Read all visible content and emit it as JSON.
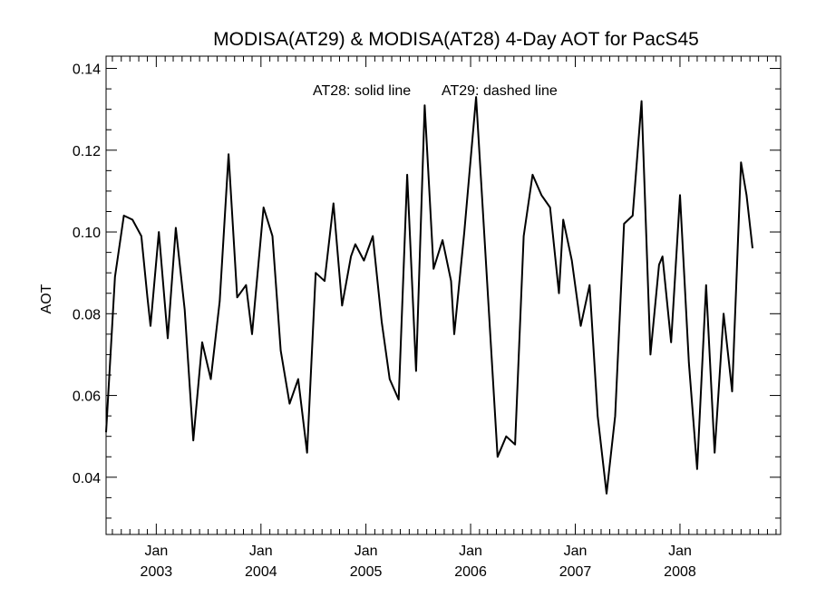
{
  "chart_data": {
    "type": "line",
    "title": "MODISA(AT29) & MODISA(AT28) 4-Day AOT for PacS45",
    "xlabel": "",
    "ylabel": "AOT",
    "annotations": [
      "AT28: solid line",
      "AT29: dashed line"
    ],
    "xlim": [
      "2002-07-10",
      "2008-12-17"
    ],
    "ylim": [
      0.026,
      0.143
    ],
    "yticks": [
      0.04,
      0.06,
      0.08,
      0.1,
      0.12,
      0.14
    ],
    "ytick_labels": [
      "0.04",
      "0.06",
      "0.08",
      "0.10",
      "0.12",
      "0.14"
    ],
    "xticks": [
      {
        "date": "2003-01-01",
        "line1": "Jan",
        "line2": "2003"
      },
      {
        "date": "2004-01-01",
        "line1": "Jan",
        "line2": "2004"
      },
      {
        "date": "2005-01-01",
        "line1": "Jan",
        "line2": "2005"
      },
      {
        "date": "2006-01-01",
        "line1": "Jan",
        "line2": "2006"
      },
      {
        "date": "2007-01-01",
        "line1": "Jan",
        "line2": "2007"
      },
      {
        "date": "2008-01-01",
        "line1": "Jan",
        "line2": "2008"
      }
    ],
    "minor_x_ticks": "monthly",
    "grid": false,
    "series": [
      {
        "name": "AT28",
        "style": "solid",
        "color": "#000000",
        "points": [
          [
            "2002-07-10",
            0.051
          ],
          [
            "2002-08-10",
            0.089
          ],
          [
            "2002-09-10",
            0.104
          ],
          [
            "2002-10-10",
            0.103
          ],
          [
            "2002-11-10",
            0.099
          ],
          [
            "2002-12-01",
            0.084
          ],
          [
            "2002-12-12",
            0.077
          ],
          [
            "2003-01-10",
            0.1
          ],
          [
            "2003-02-10",
            0.074
          ],
          [
            "2003-03-10",
            0.101
          ],
          [
            "2003-04-10",
            0.081
          ],
          [
            "2003-05-10",
            0.049
          ],
          [
            "2003-06-10",
            0.073
          ],
          [
            "2003-07-10",
            0.064
          ],
          [
            "2003-08-10",
            0.083
          ],
          [
            "2003-09-10",
            0.119
          ],
          [
            "2003-10-10",
            0.084
          ],
          [
            "2003-11-10",
            0.087
          ],
          [
            "2003-12-01",
            0.075
          ],
          [
            "2004-01-10",
            0.106
          ],
          [
            "2004-02-10",
            0.099
          ],
          [
            "2004-03-10",
            0.071
          ],
          [
            "2004-04-10",
            0.058
          ],
          [
            "2004-05-10",
            0.064
          ],
          [
            "2004-06-10",
            0.046
          ],
          [
            "2004-07-10",
            0.09
          ],
          [
            "2004-08-10",
            0.088
          ],
          [
            "2004-09-10",
            0.107
          ],
          [
            "2004-10-10",
            0.082
          ],
          [
            "2004-11-10",
            0.094
          ],
          [
            "2004-11-25",
            0.097
          ],
          [
            "2004-12-25",
            0.093
          ],
          [
            "2005-01-25",
            0.099
          ],
          [
            "2005-02-25",
            0.078
          ],
          [
            "2005-03-25",
            0.064
          ],
          [
            "2005-04-25",
            0.059
          ],
          [
            "2005-05-25",
            0.114
          ],
          [
            "2005-06-25",
            0.066
          ],
          [
            "2005-07-25",
            0.131
          ],
          [
            "2005-08-25",
            0.091
          ],
          [
            "2005-09-25",
            0.098
          ],
          [
            "2005-10-25",
            0.088
          ],
          [
            "2005-11-05",
            0.075
          ],
          [
            "2005-12-10",
            0.1
          ],
          [
            "2006-01-20",
            0.133
          ],
          [
            "2006-04-05",
            0.045
          ],
          [
            "2006-05-05",
            0.05
          ],
          [
            "2006-06-05",
            0.048
          ],
          [
            "2006-07-05",
            0.099
          ],
          [
            "2006-08-05",
            0.114
          ],
          [
            "2006-09-05",
            0.109
          ],
          [
            "2006-10-05",
            0.106
          ],
          [
            "2006-11-05",
            0.085
          ],
          [
            "2006-11-20",
            0.103
          ],
          [
            "2006-12-20",
            0.093
          ],
          [
            "2007-01-20",
            0.077
          ],
          [
            "2007-02-20",
            0.087
          ],
          [
            "2007-03-20",
            0.055
          ],
          [
            "2007-04-20",
            0.036
          ],
          [
            "2007-05-20",
            0.055
          ],
          [
            "2007-06-20",
            0.102
          ],
          [
            "2007-07-20",
            0.104
          ],
          [
            "2007-08-20",
            0.132
          ],
          [
            "2007-09-20",
            0.07
          ],
          [
            "2007-10-20",
            0.092
          ],
          [
            "2007-11-01",
            0.094
          ],
          [
            "2007-12-01",
            0.073
          ],
          [
            "2008-01-01",
            0.109
          ],
          [
            "2008-02-01",
            0.068
          ],
          [
            "2008-03-01",
            0.042
          ],
          [
            "2008-04-01",
            0.087
          ],
          [
            "2008-05-01",
            0.046
          ],
          [
            "2008-06-01",
            0.08
          ],
          [
            "2008-07-01",
            0.061
          ],
          [
            "2008-08-01",
            0.117
          ],
          [
            "2008-08-20",
            0.109
          ],
          [
            "2008-09-10",
            0.096
          ]
        ]
      }
    ]
  }
}
